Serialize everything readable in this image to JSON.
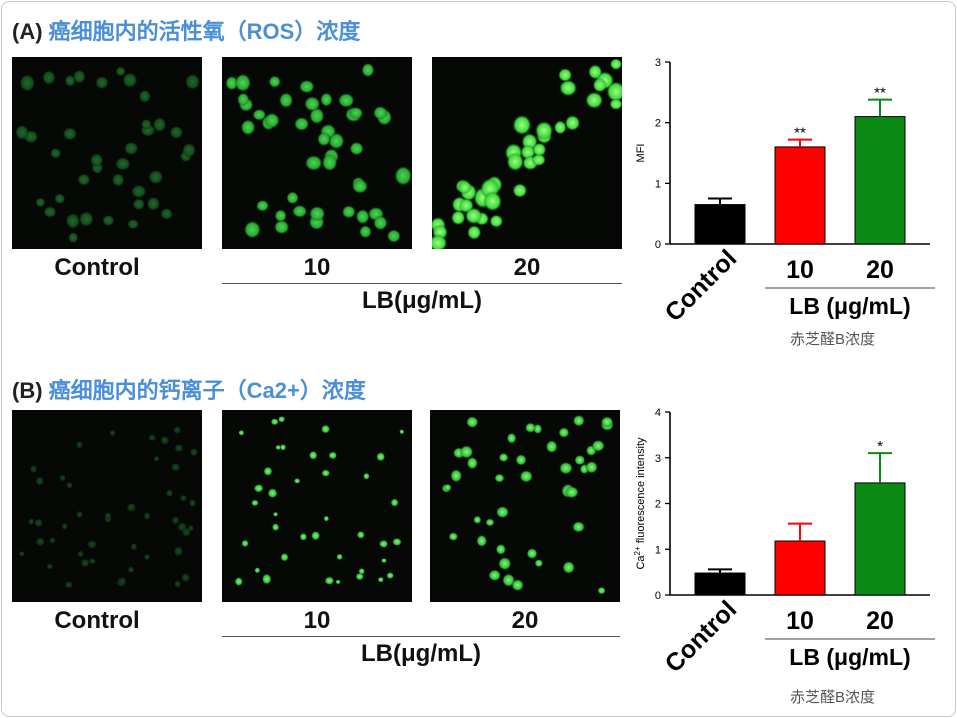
{
  "figure": {
    "sectionA": {
      "tag": "(A)",
      "title": "癌细胞内的活性氧（ROS）浓度",
      "panels": [
        "Control",
        "10",
        "20"
      ],
      "treatment_label": "LB(μg/mL)"
    },
    "sectionB": {
      "tag": "(B)",
      "title": "癌细胞内的钙离子（Ca2+）浓度",
      "panels": [
        "Control",
        "10",
        "20"
      ],
      "treatment_label": "LB(μg/mL)"
    }
  },
  "colors": {
    "control": "#000000",
    "dose10": "#ff0000",
    "dose20": "#0a8a14",
    "heading": "#4a8fd8"
  },
  "chart_data": [
    {
      "type": "bar",
      "categories": [
        "Control",
        "10",
        "20"
      ],
      "values": [
        0.65,
        1.6,
        2.1
      ],
      "errors": [
        0.1,
        0.12,
        0.28
      ],
      "significance": [
        "",
        "**",
        "**"
      ],
      "colors": [
        "#000000",
        "#ff0000",
        "#0a8a14"
      ],
      "ylabel": "MFI",
      "ylim": [
        0,
        3
      ],
      "yticks": [
        0,
        1,
        2,
        3
      ],
      "group_label": "LB (μg/mL)",
      "sub_label": "赤芝醛B浓度"
    },
    {
      "type": "bar",
      "categories": [
        "Control",
        "10",
        "20"
      ],
      "values": [
        0.48,
        1.18,
        2.45
      ],
      "errors": [
        0.08,
        0.38,
        0.65
      ],
      "significance": [
        "",
        "",
        "*"
      ],
      "colors": [
        "#000000",
        "#ff0000",
        "#0a8a14"
      ],
      "ylabel": "Ca2+ fluorescence intensity",
      "ylim": [
        0,
        4
      ],
      "yticks": [
        0,
        1,
        2,
        3,
        4
      ],
      "group_label": "LB (μg/mL)",
      "sub_label": "赤芝醛B浓度"
    }
  ]
}
